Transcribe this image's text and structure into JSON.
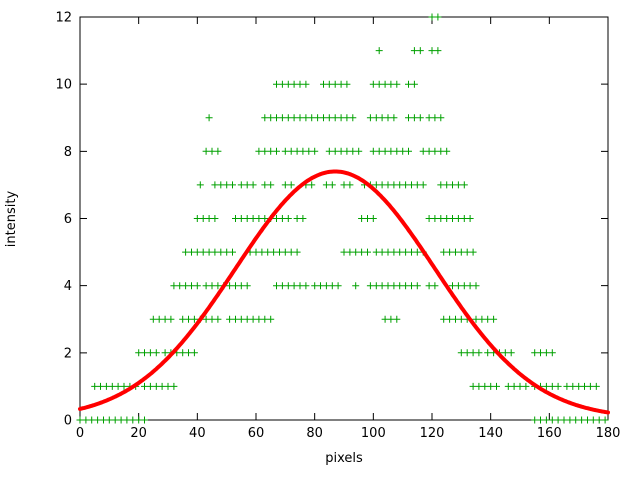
{
  "chart_data": {
    "type": "scatter",
    "title": "",
    "xlabel": "pixels",
    "ylabel": "intensity",
    "xlim": [
      0,
      180
    ],
    "ylim": [
      0,
      12
    ],
    "xticks": [
      0,
      20,
      40,
      60,
      80,
      100,
      120,
      140,
      160,
      180
    ],
    "yticks": [
      0,
      2,
      4,
      6,
      8,
      10,
      12
    ],
    "grid": false,
    "legend": "none",
    "border_color": "#000000",
    "marker": {
      "glyph": "plus",
      "color": "#00A000",
      "size": 7,
      "step": 2
    },
    "scatter_rows": [
      {
        "y": 12,
        "runs": [
          [
            120,
            123
          ]
        ]
      },
      {
        "y": 11,
        "runs": [
          [
            102,
            103
          ],
          [
            114,
            116
          ],
          [
            120,
            123
          ]
        ]
      },
      {
        "y": 10,
        "runs": [
          [
            67,
            77
          ],
          [
            83,
            91
          ],
          [
            100,
            108
          ],
          [
            112,
            114
          ]
        ]
      },
      {
        "y": 9,
        "runs": [
          [
            44,
            45
          ],
          [
            63,
            67
          ],
          [
            69,
            93
          ],
          [
            99,
            108
          ],
          [
            112,
            116
          ],
          [
            119,
            123
          ]
        ]
      },
      {
        "y": 8,
        "runs": [
          [
            43,
            47
          ],
          [
            61,
            67
          ],
          [
            70,
            81
          ],
          [
            85,
            95
          ],
          [
            100,
            112
          ],
          [
            117,
            126
          ]
        ]
      },
      {
        "y": 7,
        "runs": [
          [
            41,
            42
          ],
          [
            46,
            52
          ],
          [
            55,
            60
          ],
          [
            63,
            66
          ],
          [
            70,
            73
          ],
          [
            77,
            79
          ],
          [
            84,
            86
          ],
          [
            90,
            93
          ],
          [
            97,
            118
          ],
          [
            123,
            131
          ]
        ]
      },
      {
        "y": 6,
        "runs": [
          [
            40,
            47
          ],
          [
            53,
            63
          ],
          [
            65,
            71
          ],
          [
            74,
            77
          ],
          [
            96,
            101
          ],
          [
            119,
            134
          ]
        ]
      },
      {
        "y": 5,
        "runs": [
          [
            36,
            52
          ],
          [
            58,
            75
          ],
          [
            90,
            99
          ],
          [
            101,
            118
          ],
          [
            124,
            135
          ]
        ]
      },
      {
        "y": 4,
        "runs": [
          [
            32,
            40
          ],
          [
            43,
            58
          ],
          [
            67,
            78
          ],
          [
            80,
            88
          ],
          [
            94,
            95
          ],
          [
            99,
            115
          ],
          [
            119,
            121
          ],
          [
            127,
            136
          ]
        ]
      },
      {
        "y": 3,
        "runs": [
          [
            25,
            31
          ],
          [
            35,
            48
          ],
          [
            51,
            66
          ],
          [
            104,
            109
          ],
          [
            124,
            133
          ],
          [
            135,
            141
          ]
        ]
      },
      {
        "y": 2,
        "runs": [
          [
            20,
            26
          ],
          [
            29,
            40
          ],
          [
            130,
            137
          ],
          [
            139,
            147
          ],
          [
            155,
            161
          ]
        ]
      },
      {
        "y": 1,
        "runs": [
          [
            5,
            20
          ],
          [
            22,
            33
          ],
          [
            134,
            143
          ],
          [
            146,
            152
          ],
          [
            155,
            163
          ],
          [
            166,
            176
          ]
        ]
      },
      {
        "y": 0,
        "runs": [
          [
            0,
            22
          ],
          [
            155,
            180
          ]
        ]
      }
    ],
    "fit_curve": {
      "shape": "gaussian",
      "color": "#FF0000",
      "width": 4,
      "peak": 7.35,
      "center": 87,
      "sigma": 34,
      "baseline": 0.05
    }
  }
}
